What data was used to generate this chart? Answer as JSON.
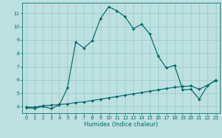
{
  "xlabel": "Humidex (Indice chaleur)",
  "bg_color": "#bde0e0",
  "grid_color": "#90c8c8",
  "line_color": "#006868",
  "xlim": [
    -0.5,
    23.5
  ],
  "ylim": [
    3.5,
    11.8
  ],
  "yticks": [
    4,
    5,
    6,
    7,
    8,
    9,
    10,
    11
  ],
  "xticks": [
    0,
    1,
    2,
    3,
    4,
    5,
    6,
    7,
    8,
    9,
    10,
    11,
    12,
    13,
    14,
    15,
    16,
    17,
    18,
    19,
    20,
    21,
    22,
    23
  ],
  "curve1_x": [
    0,
    1,
    2,
    3,
    4,
    5,
    6,
    7,
    8,
    9,
    10,
    11,
    12,
    13,
    14,
    15,
    16,
    17,
    18,
    19,
    20,
    21,
    22,
    23
  ],
  "curve1_y": [
    3.9,
    3.85,
    4.0,
    3.85,
    4.1,
    5.4,
    8.85,
    8.4,
    8.95,
    10.6,
    11.5,
    11.2,
    10.75,
    9.85,
    10.2,
    9.45,
    7.8,
    6.9,
    7.1,
    5.25,
    5.3,
    4.55,
    5.55,
    6.0
  ],
  "curve2_x": [
    0,
    1,
    2,
    3,
    4,
    5,
    6,
    7,
    8,
    9,
    10,
    11,
    12,
    13,
    14,
    15,
    16,
    17,
    18,
    19,
    20,
    21,
    22,
    23
  ],
  "curve2_y": [
    3.95,
    3.95,
    4.05,
    4.1,
    4.15,
    4.2,
    4.3,
    4.35,
    4.45,
    4.55,
    4.65,
    4.75,
    4.85,
    4.95,
    5.05,
    5.15,
    5.25,
    5.35,
    5.45,
    5.5,
    5.55,
    5.3,
    5.6,
    5.95
  ],
  "marker_size": 2.0,
  "linewidth": 0.9,
  "tick_fontsize": 5.0,
  "label_fontsize": 6.0
}
